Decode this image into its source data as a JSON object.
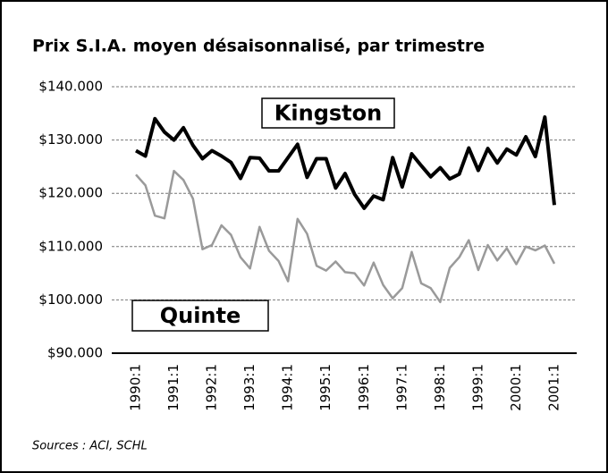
{
  "chart_data": {
    "type": "line",
    "title": "Prix S.I.A. moyen désaisonnalisé, par trimestre",
    "source": "Sources : ACI, SCHL",
    "categories": [
      "1990:1",
      null,
      null,
      null,
      "1991:1",
      null,
      null,
      null,
      "1992:1",
      null,
      null,
      null,
      "1993:1",
      null,
      null,
      null,
      "1994:1",
      null,
      null,
      null,
      "1995:1",
      null,
      null,
      null,
      "1996:1",
      null,
      null,
      null,
      "1997:1",
      null,
      null,
      null,
      "1998:1",
      null,
      null,
      null,
      "1999:1",
      null,
      null,
      null,
      "2000:1",
      null,
      null,
      null,
      "2001:1"
    ],
    "series": [
      {
        "name": "Kingston",
        "color": "#000000",
        "values": [
          128000,
          127000,
          134000,
          131500,
          130000,
          132300,
          129000,
          126500,
          128000,
          127000,
          125800,
          122800,
          126700,
          126600,
          124200,
          124200,
          126700,
          129200,
          123000,
          126500,
          126500,
          121000,
          123700,
          119800,
          117200,
          119500,
          118800,
          126700,
          121200,
          127400,
          125200,
          123100,
          124800,
          122700,
          123600,
          128500,
          124300,
          128400,
          125700,
          128300,
          127200,
          130600,
          126900,
          134300,
          117800
        ]
      },
      {
        "name": "Quinte",
        "color": "#9a9a9a",
        "values": [
          123500,
          121500,
          115800,
          115300,
          124200,
          122500,
          119000,
          109500,
          110300,
          114000,
          112200,
          108000,
          105900,
          113700,
          109200,
          107300,
          103500,
          115200,
          112400,
          106400,
          105500,
          107200,
          105200,
          105000,
          102700,
          107000,
          102800,
          100300,
          102200,
          109000,
          103100,
          102200,
          99600,
          106000,
          108000,
          111200,
          105600,
          110300,
          107400,
          109700,
          106700,
          110000,
          109300,
          110200,
          106800
        ]
      }
    ],
    "ylim": [
      90000,
      140000
    ],
    "yticks": [
      {
        "value": 90000,
        "label": "$90.000"
      },
      {
        "value": 100000,
        "label": "$100.000"
      },
      {
        "value": 110000,
        "label": "$110.000"
      },
      {
        "value": 120000,
        "label": "$120.000"
      },
      {
        "value": 130000,
        "label": "$130.000"
      },
      {
        "value": 140000,
        "label": "$140.000"
      }
    ],
    "grid": true
  }
}
